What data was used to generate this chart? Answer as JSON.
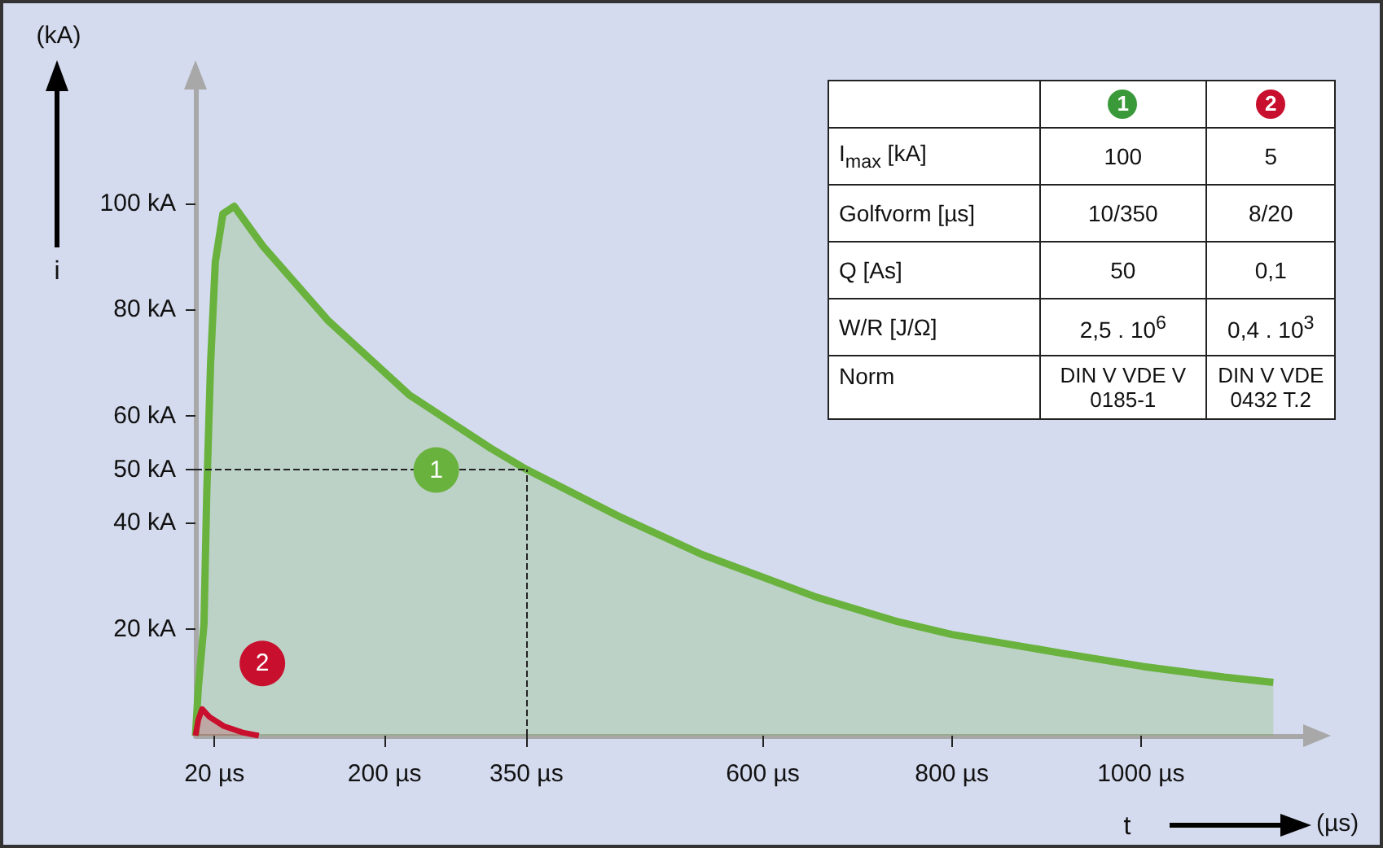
{
  "chart_data": [
    {
      "type": "area",
      "ylabel": "i",
      "xlabel": "t",
      "annotations": [
        "(kA)",
        "(µs)"
      ],
      "xlim": [
        0,
        1175
      ],
      "ylim": [
        0,
        125
      ],
      "xticks": [
        {
          "value": 20,
          "label": "20 µs"
        },
        {
          "value": 200,
          "label": "200 µs"
        },
        {
          "value": 350,
          "label": "350 µs"
        },
        {
          "value": 600,
          "label": "600 µs"
        },
        {
          "value": 800,
          "label": "800 µs"
        },
        {
          "value": 1000,
          "label": "1000 µs"
        }
      ],
      "yticks": [
        {
          "value": 20,
          "label": "20 kA"
        },
        {
          "value": 40,
          "label": "40 kA"
        },
        {
          "value": 50,
          "label": "50 kA"
        },
        {
          "value": 60,
          "label": "60 kA"
        },
        {
          "value": 80,
          "label": "80 kA"
        },
        {
          "value": 100,
          "label": "100 kA"
        }
      ],
      "series": [
        {
          "name": "1",
          "color": "#6ab23e",
          "x": [
            0,
            3,
            9,
            12,
            16,
            21,
            29,
            41,
            71,
            140,
            226,
            312,
            350,
            450,
            536,
            657,
            743,
            800,
            916,
            1002,
            1088,
            1140
          ],
          "values": [
            0,
            9,
            21,
            46,
            70,
            89,
            98,
            99.4,
            92,
            78,
            64,
            54,
            50,
            41,
            34,
            26,
            21.4,
            19,
            15.5,
            13,
            11,
            10
          ]
        },
        {
          "name": "2",
          "color": "#c8102e",
          "x": [
            0,
            3,
            7,
            15,
            30,
            50,
            67
          ],
          "values": [
            0,
            3,
            5,
            3.5,
            1.8,
            0.6,
            0
          ]
        }
      ],
      "ref_lines": [
        {
          "axis": "y",
          "value": 50,
          "line_style": "dashed",
          "color": "#222222"
        },
        {
          "axis": "x",
          "value": 350,
          "line_style": "dashed",
          "color": "#222222"
        }
      ],
      "grid": false,
      "legend": false,
      "marker": "none"
    },
    {
      "type": "other",
      "categories": [
        "1",
        "2"
      ],
      "colors": [
        "#3a9a3a",
        "#c8102e"
      ],
      "y_categories": [
        "I$_{max}$ [kA]",
        "Golfvorm [µs]",
        "Q [As]",
        "W/R [J/Ω]",
        "Norm"
      ],
      "cell_labels": [
        [
          "100",
          "5"
        ],
        [
          "10/350",
          "8/20"
        ],
        [
          "50",
          "0,1"
        ],
        [
          "2,5 . 10$^{6}$",
          "0,4 . 10$^{3}$"
        ],
        [
          "DIN V VDE V 0185-1",
          "DIN V VDE 0432 T.2"
        ]
      ]
    }
  ]
}
